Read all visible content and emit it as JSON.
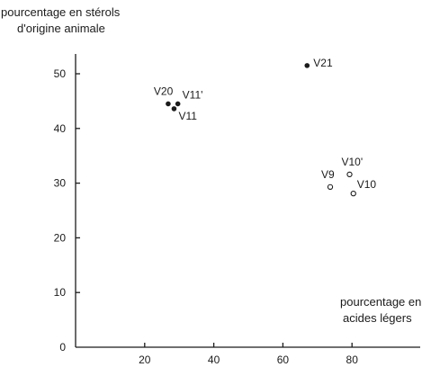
{
  "chart_data": {
    "type": "scatter",
    "ylabel_lines": [
      "pourcentage en stérols",
      "d'origine animale"
    ],
    "xlabel_lines": [
      "pourcentage en",
      "acides légers"
    ],
    "xlim": [
      0,
      90
    ],
    "ylim": [
      0,
      57
    ],
    "x_ticks": [
      20,
      40,
      60,
      80
    ],
    "y_ticks": [
      0,
      10,
      20,
      30,
      40,
      50
    ],
    "grid": false,
    "legend": "none",
    "colors": {
      "ink": "#1b1b1b",
      "background": "#ffffff"
    },
    "series": [
      {
        "marker": "filled-circle",
        "points": [
          {
            "label": "V20",
            "x": 26.8,
            "y": 44.5
          },
          {
            "label": "V11'",
            "x": 29.6,
            "y": 44.5
          },
          {
            "label": "V11",
            "x": 28.5,
            "y": 43.6
          },
          {
            "label": "V21",
            "x": 67.0,
            "y": 51.5
          }
        ]
      },
      {
        "marker": "open-circle",
        "points": [
          {
            "label": "V9",
            "x": 73.7,
            "y": 29.3
          },
          {
            "label": "V10'",
            "x": 79.3,
            "y": 31.6
          },
          {
            "label": "V10",
            "x": 80.4,
            "y": 28.1
          }
        ]
      }
    ]
  }
}
